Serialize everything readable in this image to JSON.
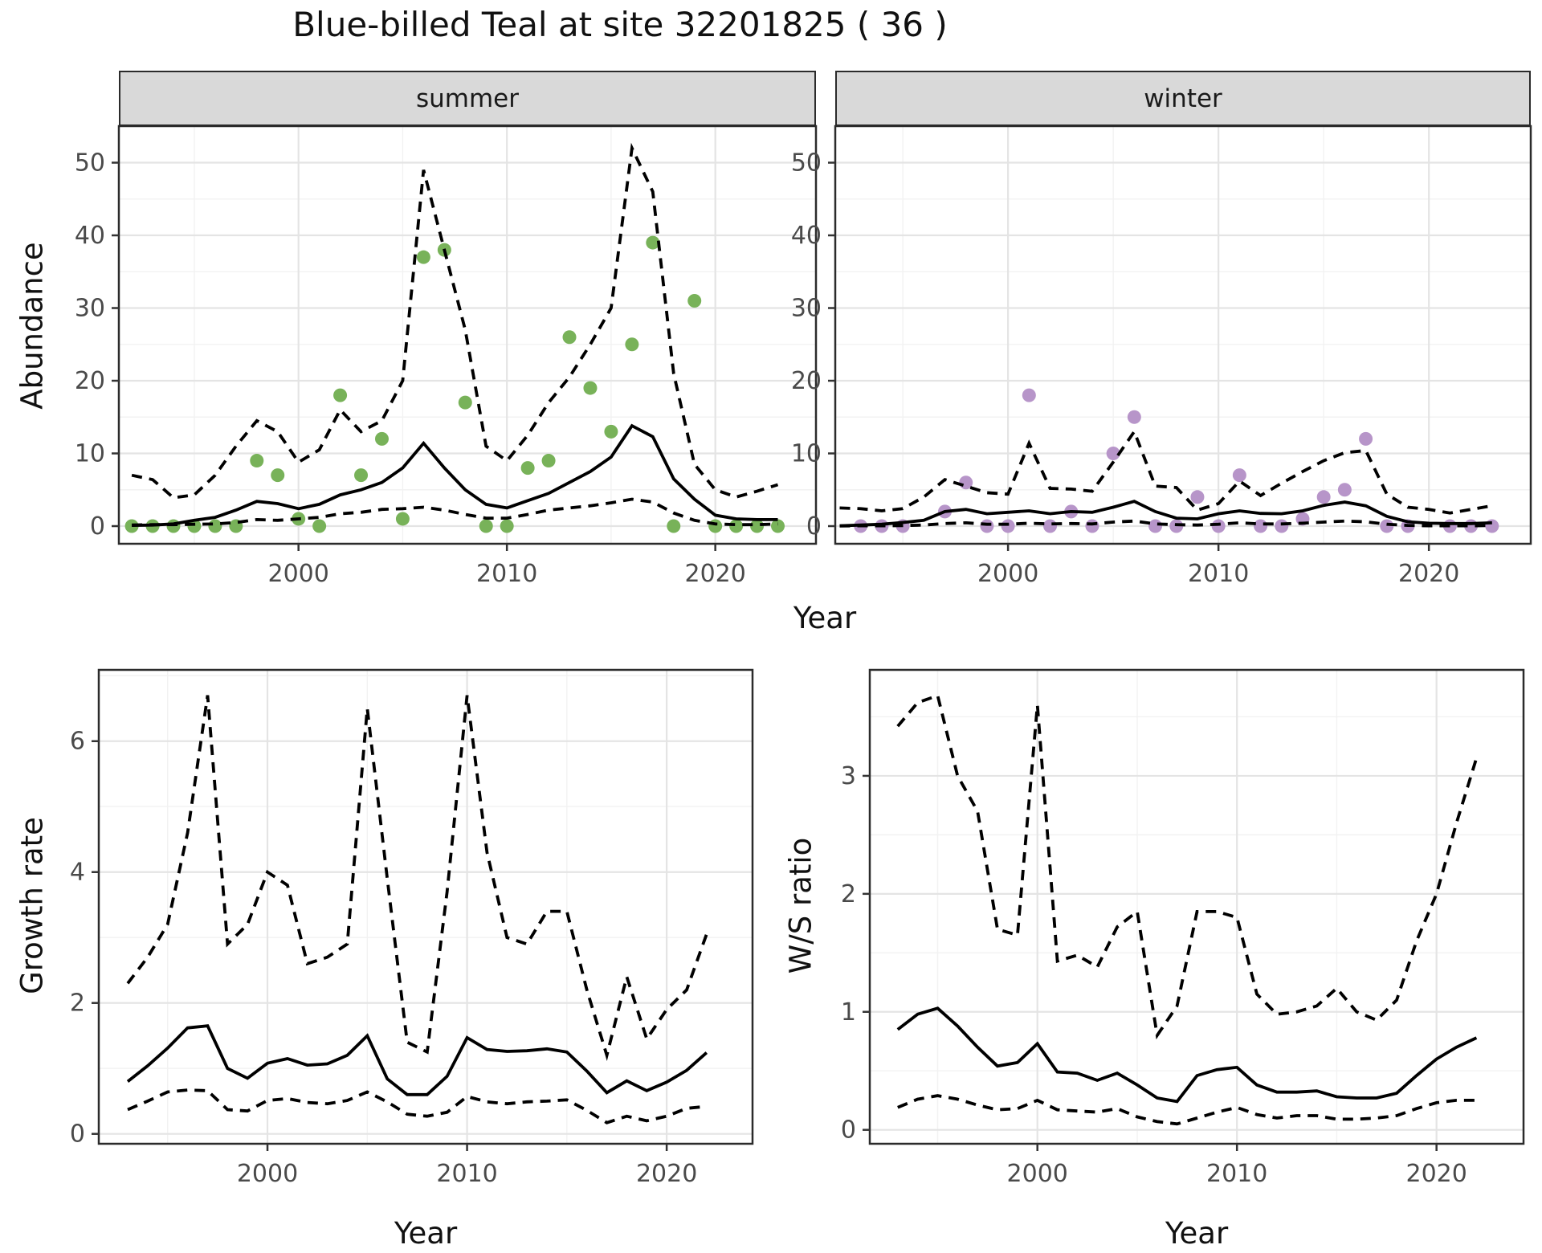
{
  "title": "Blue-billed Teal at site 32201825 ( 36 )",
  "labels": {
    "y_top": "Abundance",
    "x_top": "Year",
    "y_bottom_left": "Growth rate",
    "x_bottom_left": "Year",
    "y_bottom_right": "W/S ratio",
    "x_bottom_right": "Year"
  },
  "colors": {
    "summer_point": "#78b259",
    "winter_point": "#b795c9",
    "line": "#000000",
    "grid_major": "#e4e4e4",
    "grid_minor": "#f2f2f2",
    "panel_border": "#2b2b2b",
    "tick_text": "#4a4a4a",
    "strip_bg": "#d9d9d9"
  },
  "chart_data": [
    {
      "type": "line",
      "facet": "summer",
      "ylabel": "Abundance",
      "xlabel": "Year",
      "xlim": [
        1991.38,
        2024.83
      ],
      "ylim": [
        -2.43,
        55.03
      ],
      "xticks": [
        2000,
        2010,
        2020
      ],
      "xminor": [
        1995,
        2005,
        2015
      ],
      "yticks": [
        0,
        10,
        20,
        30,
        40,
        50
      ],
      "yminor": [
        5,
        15,
        25,
        35,
        45
      ],
      "x": [
        1992,
        1993,
        1994,
        1995,
        1996,
        1997,
        1998,
        1999,
        2000,
        2001,
        2002,
        2003,
        2004,
        2005,
        2006,
        2007,
        2008,
        2009,
        2010,
        2011,
        2012,
        2013,
        2014,
        2015,
        2016,
        2017,
        2018,
        2019,
        2020,
        2021,
        2022,
        2023
      ],
      "series": [
        {
          "name": "observed_counts",
          "style": "points",
          "color": "#78b259",
          "values": [
            0,
            0,
            0,
            0,
            0,
            0,
            9,
            7,
            1,
            0,
            18,
            7,
            12,
            1,
            37,
            38,
            17,
            0,
            0,
            8,
            9,
            26,
            19,
            13,
            25,
            39,
            0,
            31,
            0,
            0,
            0,
            0
          ]
        },
        {
          "name": "estimate",
          "style": "solid",
          "values": [
            0.1,
            0.15,
            0.3,
            0.8,
            1.2,
            2.2,
            3.4,
            3.1,
            2.4,
            3.0,
            4.3,
            5.0,
            6.0,
            8.0,
            11.4,
            8.0,
            5.0,
            3.0,
            2.5,
            3.5,
            4.5,
            6.0,
            7.5,
            9.5,
            13.8,
            12.3,
            6.5,
            3.7,
            1.5,
            1.0,
            0.9,
            0.9
          ]
        },
        {
          "name": "upper_ci",
          "style": "dashed",
          "values": [
            7.0,
            6.4,
            3.9,
            4.3,
            7.0,
            11.0,
            14.5,
            13.0,
            8.8,
            10.5,
            16.0,
            13.0,
            14.5,
            20.0,
            49.0,
            38.0,
            27.0,
            11.0,
            9.0,
            12.5,
            17.0,
            20.5,
            25.0,
            30.0,
            52.0,
            46.0,
            21.0,
            8.5,
            5.0,
            4.0,
            4.8,
            5.7
          ]
        },
        {
          "name": "lower_ci",
          "style": "dashed",
          "values": [
            0.15,
            0.2,
            0.2,
            0.25,
            0.3,
            0.5,
            0.9,
            0.8,
            1.0,
            1.2,
            1.7,
            1.9,
            2.3,
            2.4,
            2.6,
            2.2,
            1.6,
            1.1,
            1.1,
            1.6,
            2.2,
            2.5,
            2.8,
            3.2,
            3.7,
            3.3,
            1.8,
            0.8,
            0.3,
            0.2,
            0.2,
            0.3
          ]
        }
      ]
    },
    {
      "type": "line",
      "facet": "winter",
      "ylabel": "Abundance",
      "xlabel": "Year",
      "xlim": [
        1991.79,
        2024.84
      ],
      "ylim": [
        -2.43,
        55.03
      ],
      "xticks": [
        2000,
        2010,
        2020
      ],
      "xminor": [
        1995,
        2005,
        2015
      ],
      "yticks": [
        0,
        10,
        20,
        30,
        40,
        50
      ],
      "yminor": [
        5,
        15,
        25,
        35,
        45
      ],
      "x": [
        1992,
        1993,
        1994,
        1995,
        1996,
        1997,
        1998,
        1999,
        2000,
        2001,
        2002,
        2003,
        2004,
        2005,
        2006,
        2007,
        2008,
        2009,
        2010,
        2011,
        2012,
        2013,
        2014,
        2015,
        2016,
        2017,
        2018,
        2019,
        2020,
        2021,
        2022,
        2023
      ],
      "series": [
        {
          "name": "observed_counts",
          "style": "points",
          "color": "#b795c9",
          "values": [
            null,
            0,
            0,
            0,
            null,
            2,
            6,
            0,
            0,
            18,
            0,
            2,
            0,
            10,
            15,
            0,
            0,
            4,
            0,
            7,
            0,
            0,
            1,
            4,
            5,
            12,
            0,
            0,
            null,
            0,
            0,
            0
          ]
        },
        {
          "name": "estimate",
          "style": "solid",
          "values": [
            0.05,
            0.15,
            0.25,
            0.5,
            0.8,
            2.0,
            2.3,
            1.7,
            1.9,
            2.1,
            1.7,
            2.0,
            1.9,
            2.6,
            3.4,
            2.0,
            1.1,
            1.0,
            1.7,
            2.1,
            1.75,
            1.7,
            2.1,
            2.85,
            3.3,
            2.8,
            1.35,
            0.6,
            0.4,
            0.35,
            0.35,
            0.45
          ]
        },
        {
          "name": "upper_ci",
          "style": "dashed",
          "values": [
            2.5,
            2.4,
            2.1,
            2.4,
            4.0,
            6.4,
            5.5,
            4.6,
            4.4,
            11.4,
            5.2,
            5.1,
            4.8,
            8.8,
            13.0,
            5.5,
            5.3,
            2.2,
            3.1,
            6.2,
            4.2,
            5.9,
            7.5,
            9.0,
            10.1,
            10.4,
            4.4,
            2.6,
            2.3,
            1.8,
            2.3,
            2.8
          ]
        },
        {
          "name": "lower_ci",
          "style": "dashed",
          "values": [
            0.02,
            0.05,
            0.05,
            0.08,
            0.15,
            0.35,
            0.45,
            0.25,
            0.25,
            0.4,
            0.3,
            0.35,
            0.3,
            0.55,
            0.7,
            0.3,
            0.2,
            0.15,
            0.25,
            0.45,
            0.3,
            0.3,
            0.4,
            0.55,
            0.7,
            0.6,
            0.25,
            0.1,
            0.05,
            0.05,
            0.05,
            0.08
          ]
        }
      ]
    },
    {
      "type": "line",
      "facet": null,
      "ylabel": "Growth rate",
      "xlabel": "Year",
      "xlim": [
        1991.55,
        2024.3
      ],
      "ylim": [
        -0.151,
        7.089
      ],
      "xticks": [
        2000,
        2010,
        2020
      ],
      "xminor": [
        1995,
        2005,
        2015
      ],
      "yticks": [
        0,
        2,
        4,
        6
      ],
      "yminor": [
        1,
        3,
        5,
        7
      ],
      "x": [
        1993,
        1994,
        1995,
        1996,
        1997,
        1998,
        1999,
        2000,
        2001,
        2002,
        2003,
        2004,
        2005,
        2006,
        2007,
        2008,
        2009,
        2010,
        2011,
        2012,
        2013,
        2014,
        2015,
        2016,
        2017,
        2018,
        2019,
        2020,
        2021,
        2022
      ],
      "series": [
        {
          "name": "estimate",
          "style": "solid",
          "values": [
            0.8,
            1.04,
            1.31,
            1.62,
            1.65,
            1.0,
            0.85,
            1.08,
            1.15,
            1.05,
            1.07,
            1.2,
            1.5,
            0.84,
            0.6,
            0.6,
            0.88,
            1.47,
            1.29,
            1.26,
            1.27,
            1.3,
            1.25,
            0.96,
            0.63,
            0.81,
            0.66,
            0.79,
            0.97,
            1.24
          ]
        },
        {
          "name": "upper_ci",
          "style": "dashed",
          "values": [
            2.3,
            2.7,
            3.2,
            4.6,
            6.7,
            2.9,
            3.2,
            4.0,
            3.8,
            2.6,
            2.7,
            2.9,
            6.5,
            3.9,
            1.4,
            1.25,
            3.7,
            6.7,
            4.3,
            3.0,
            2.9,
            3.4,
            3.4,
            2.2,
            1.2,
            2.4,
            1.45,
            1.9,
            2.2,
            3.05
          ]
        },
        {
          "name": "lower_ci",
          "style": "dashed",
          "values": [
            0.37,
            0.5,
            0.64,
            0.67,
            0.66,
            0.37,
            0.35,
            0.51,
            0.54,
            0.48,
            0.46,
            0.51,
            0.64,
            0.49,
            0.3,
            0.27,
            0.33,
            0.57,
            0.49,
            0.46,
            0.49,
            0.5,
            0.52,
            0.36,
            0.17,
            0.27,
            0.2,
            0.27,
            0.39,
            0.42
          ]
        }
      ]
    },
    {
      "type": "line",
      "facet": null,
      "ylabel": "W/S ratio",
      "xlabel": "Year",
      "xlim": [
        1991.6,
        2024.36
      ],
      "ylim": [
        -0.118,
        3.898
      ],
      "xticks": [
        2000,
        2010,
        2020
      ],
      "xminor": [
        1995,
        2005,
        2015
      ],
      "yticks": [
        0,
        1,
        2,
        3
      ],
      "yminor": [
        0.5,
        1.5,
        2.5,
        3.5
      ],
      "x": [
        1993,
        1994,
        1995,
        1996,
        1997,
        1998,
        1999,
        2000,
        2001,
        2002,
        2003,
        2004,
        2005,
        2006,
        2007,
        2008,
        2009,
        2010,
        2011,
        2012,
        2013,
        2014,
        2015,
        2016,
        2017,
        2018,
        2019,
        2020,
        2021,
        2022
      ],
      "series": [
        {
          "name": "estimate",
          "style": "solid",
          "values": [
            0.85,
            0.98,
            1.03,
            0.88,
            0.7,
            0.54,
            0.57,
            0.73,
            0.49,
            0.48,
            0.42,
            0.48,
            0.38,
            0.27,
            0.24,
            0.46,
            0.51,
            0.53,
            0.38,
            0.32,
            0.32,
            0.33,
            0.28,
            0.27,
            0.27,
            0.31,
            0.46,
            0.6,
            0.7,
            0.78
          ]
        },
        {
          "name": "upper_ci",
          "style": "dashed",
          "values": [
            3.42,
            3.62,
            3.68,
            3.0,
            2.7,
            1.7,
            1.65,
            3.6,
            1.43,
            1.48,
            1.38,
            1.72,
            1.85,
            0.8,
            1.05,
            1.85,
            1.85,
            1.8,
            1.15,
            0.98,
            1.0,
            1.05,
            1.2,
            1.0,
            0.93,
            1.1,
            1.6,
            2.0,
            2.6,
            3.15
          ]
        },
        {
          "name": "lower_ci",
          "style": "dashed",
          "values": [
            0.19,
            0.26,
            0.29,
            0.26,
            0.21,
            0.17,
            0.18,
            0.25,
            0.17,
            0.16,
            0.15,
            0.18,
            0.11,
            0.07,
            0.05,
            0.1,
            0.15,
            0.19,
            0.13,
            0.1,
            0.12,
            0.12,
            0.09,
            0.09,
            0.1,
            0.12,
            0.18,
            0.23,
            0.25,
            0.25
          ]
        }
      ]
    }
  ]
}
